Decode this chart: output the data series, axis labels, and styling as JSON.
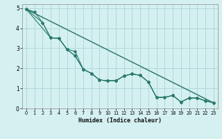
{
  "xlabel": "Humidex (Indice chaleur)",
  "xlim": [
    -0.5,
    23.5
  ],
  "ylim": [
    0,
    5.2
  ],
  "xticks": [
    0,
    1,
    2,
    3,
    4,
    5,
    6,
    7,
    8,
    9,
    10,
    11,
    12,
    13,
    14,
    15,
    16,
    17,
    18,
    19,
    20,
    21,
    22,
    23
  ],
  "yticks": [
    0,
    1,
    2,
    3,
    4,
    5
  ],
  "background_color": "#d5f0f0",
  "grid_color": "#b0d8d8",
  "line_color": "#2a7a6a",
  "series_marked": [
    {
      "x": [
        0,
        1,
        2,
        3,
        4,
        5,
        6,
        7,
        8,
        9,
        10,
        11,
        12,
        13,
        14,
        15,
        16,
        17,
        18,
        19,
        20,
        21,
        22,
        23
      ],
      "y": [
        4.95,
        4.82,
        4.28,
        3.52,
        3.5,
        2.95,
        2.62,
        1.95,
        1.75,
        1.42,
        1.38,
        1.38,
        1.62,
        1.72,
        1.65,
        1.32,
        0.55,
        0.55,
        0.65,
        0.32,
        0.52,
        0.52,
        0.38,
        0.28
      ]
    },
    {
      "x": [
        0,
        2,
        3,
        4,
        5,
        6,
        7,
        8,
        9,
        10,
        11,
        12,
        13,
        14,
        15,
        16,
        17,
        18,
        19,
        20,
        21,
        22,
        23
      ],
      "y": [
        4.95,
        4.28,
        3.52,
        3.5,
        2.95,
        2.62,
        1.95,
        1.75,
        1.42,
        1.38,
        1.38,
        1.62,
        1.72,
        1.65,
        1.32,
        0.55,
        0.55,
        0.65,
        0.32,
        0.52,
        0.52,
        0.38,
        0.28
      ]
    },
    {
      "x": [
        0,
        3,
        4,
        5,
        6,
        7,
        8,
        9,
        10,
        11,
        12,
        13,
        14,
        15,
        16,
        17,
        18,
        19,
        20,
        21,
        22,
        23
      ],
      "y": [
        4.95,
        3.52,
        3.5,
        2.95,
        2.85,
        1.95,
        1.75,
        1.42,
        1.38,
        1.38,
        1.62,
        1.72,
        1.65,
        1.32,
        0.55,
        0.55,
        0.65,
        0.32,
        0.52,
        0.52,
        0.38,
        0.28
      ]
    }
  ],
  "series_line": [
    {
      "x": [
        0,
        23
      ],
      "y": [
        4.95,
        0.28
      ]
    },
    {
      "x": [
        0,
        23
      ],
      "y": [
        4.95,
        0.28
      ]
    }
  ]
}
